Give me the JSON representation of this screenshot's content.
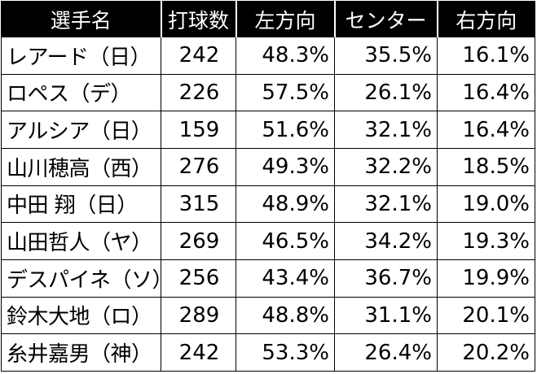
{
  "headers": [
    "選手名",
    "打球数",
    "左方向",
    "センター",
    "右方向"
  ],
  "rows": [
    {
      "name": "レアード（日）",
      "count": "242",
      "left": "48.3%",
      "center": "35.5%",
      "right": "16.1%"
    },
    {
      "name": "ロペス（デ）",
      "count": "226",
      "left": "57.5%",
      "center": "26.1%",
      "right": "16.4%"
    },
    {
      "name": "アルシア（日）",
      "count": "159",
      "left": "51.6%",
      "center": "32.1%",
      "right": "16.4%"
    },
    {
      "name": "山川穂高（西）",
      "count": "276",
      "left": "49.3%",
      "center": "32.2%",
      "right": "18.5%"
    },
    {
      "name": "中田 翔（日）",
      "count": "315",
      "left": "48.9%",
      "center": "32.1%",
      "right": "19.0%"
    },
    {
      "name": "山田哲人（ヤ）",
      "count": "269",
      "left": "46.5%",
      "center": "34.2%",
      "right": "19.3%"
    },
    {
      "name": "デスパイネ（ソ）",
      "count": "256",
      "left": "43.4%",
      "center": "36.7%",
      "right": "19.9%"
    },
    {
      "name": "鈴木大地（ロ）",
      "count": "289",
      "left": "48.8%",
      "center": "31.1%",
      "right": "20.1%"
    },
    {
      "name": "糸井嘉男（神）",
      "count": "242",
      "left": "53.3%",
      "center": "26.4%",
      "right": "20.2%"
    }
  ]
}
